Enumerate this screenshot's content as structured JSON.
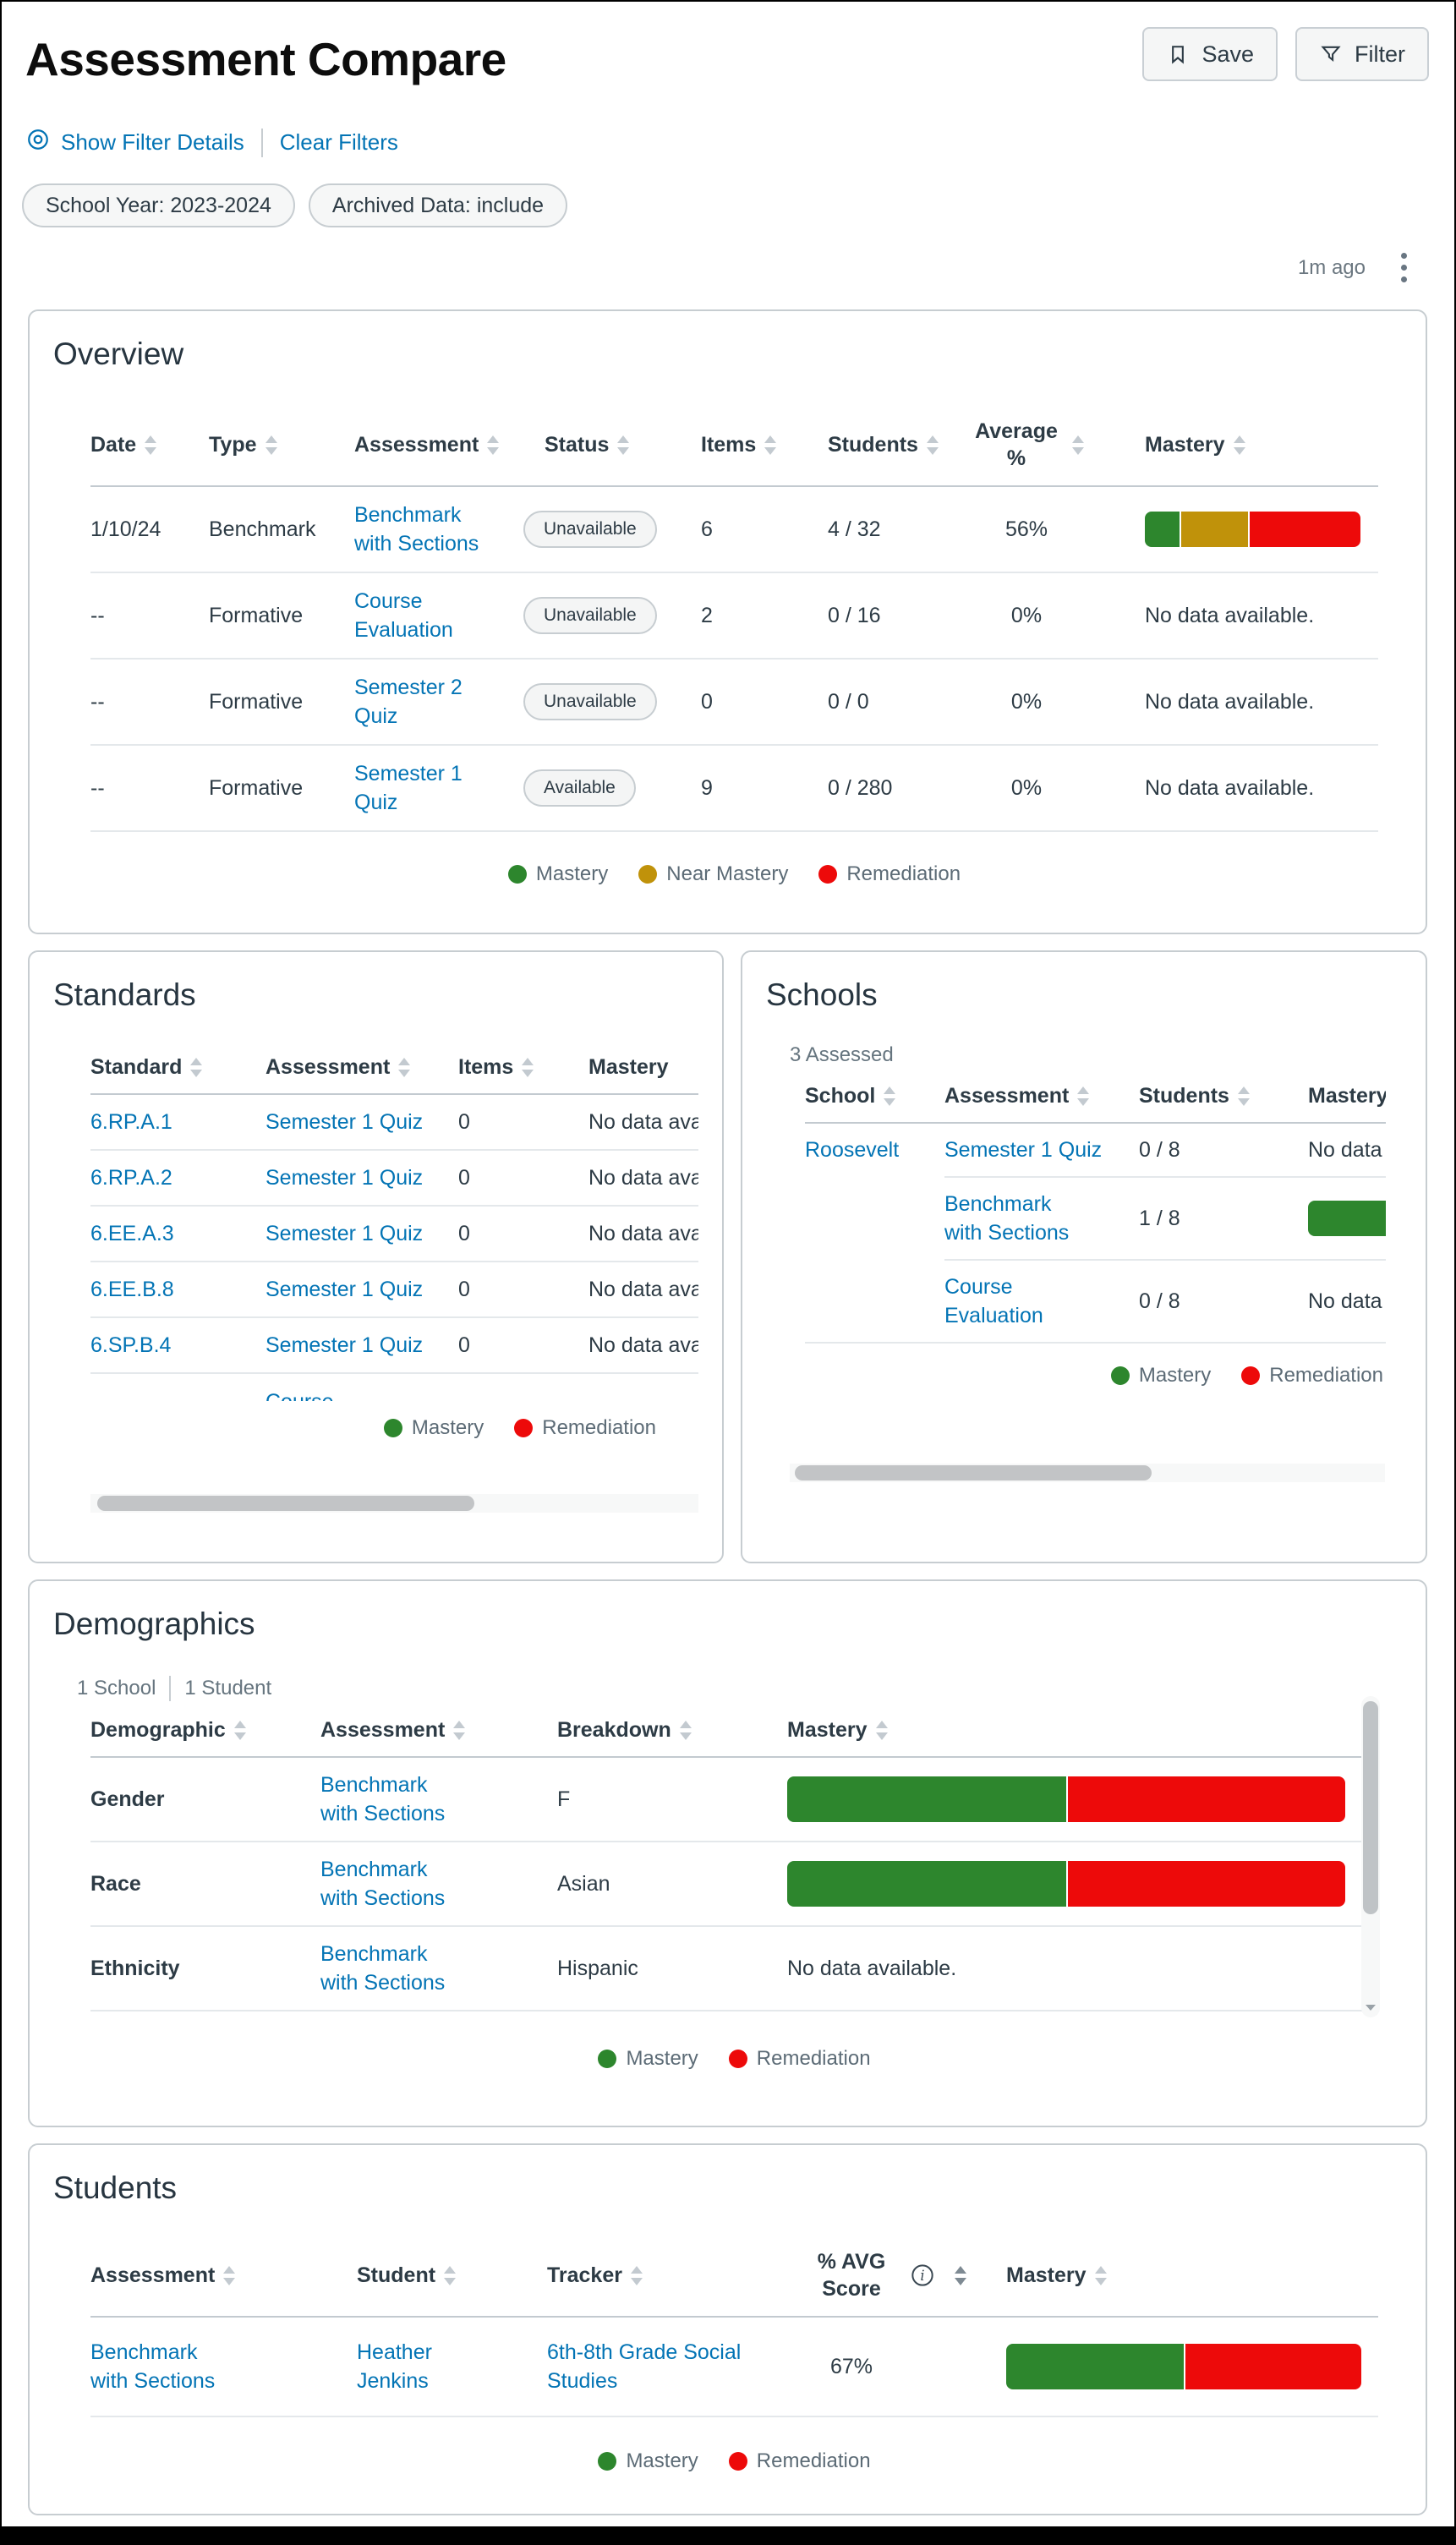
{
  "colors": {
    "mastery": "#2D862D",
    "near_mastery": "#C0920A",
    "remediation": "#ED0A0A"
  },
  "header": {
    "title": "Assessment Compare",
    "save_label": "Save",
    "filter_label": "Filter",
    "show_filter_details": "Show Filter Details",
    "clear_filters": "Clear Filters",
    "pills": [
      "School Year: 2023-2024",
      "Archived Data: include"
    ],
    "updated": "1m ago"
  },
  "overview": {
    "heading": "Overview",
    "columns": {
      "date": "Date",
      "type": "Type",
      "assessment": "Assessment",
      "status": "Status",
      "items": "Items",
      "students": "Students",
      "avg": "Average %",
      "mastery": "Mastery"
    },
    "rows": [
      {
        "date": "1/10/24",
        "type": "Benchmark",
        "assessment": "Benchmark with Sections",
        "status": "Unavailable",
        "items": "6",
        "students": "4 / 32",
        "avg": "56%",
        "mastery_bar": {
          "mastery": 16,
          "near_mastery": 32,
          "remediation": 52
        }
      },
      {
        "date": "--",
        "type": "Formative",
        "assessment": "Course Evaluation",
        "status": "Unavailable",
        "items": "2",
        "students": "0 / 16",
        "avg": "0%",
        "mastery_text": "No data available."
      },
      {
        "date": "--",
        "type": "Formative",
        "assessment": "Semester 2 Quiz",
        "status": "Unavailable",
        "items": "0",
        "students": "0 / 0",
        "avg": "0%",
        "mastery_text": "No data available."
      },
      {
        "date": "--",
        "type": "Formative",
        "assessment": "Semester 1 Quiz",
        "status": "Available",
        "items": "9",
        "students": "0 / 280",
        "avg": "0%",
        "mastery_text": "No data available."
      }
    ],
    "legend": [
      {
        "label": "Mastery"
      },
      {
        "label": "Near Mastery"
      },
      {
        "label": "Remediation"
      }
    ]
  },
  "standards": {
    "heading": "Standards",
    "columns": {
      "standard": "Standard",
      "assessment": "Assessment",
      "items": "Items",
      "mastery": "Mastery"
    },
    "rows": [
      {
        "standard": "6.RP.A.1",
        "assessment": "Semester 1 Quiz",
        "items": "0",
        "mastery_text": "No data available."
      },
      {
        "standard": "6.RP.A.2",
        "assessment": "Semester 1 Quiz",
        "items": "0",
        "mastery_text": "No data available."
      },
      {
        "standard": "6.EE.A.3",
        "assessment": "Semester 1 Quiz",
        "items": "0",
        "mastery_text": "No data available."
      },
      {
        "standard": "6.EE.B.8",
        "assessment": "Semester 1 Quiz",
        "items": "0",
        "mastery_text": "No data available."
      },
      {
        "standard": "6.SP.B.4",
        "assessment": "Semester 1 Quiz",
        "items": "0",
        "mastery_text": "No data available."
      }
    ],
    "partial_row_text": "Course",
    "legend": [
      {
        "label": "Mastery"
      },
      {
        "label": "Remediation"
      }
    ]
  },
  "schools": {
    "heading": "Schools",
    "assessed": "3 Assessed",
    "columns": {
      "school": "School",
      "assessment": "Assessment",
      "students": "Students",
      "mastery": "Mastery"
    },
    "rows": [
      {
        "school": "Roosevelt",
        "assessment": "Semester 1 Quiz",
        "students": "0 / 8",
        "mastery_text": "No data available."
      },
      {
        "school": "",
        "assessment": "Benchmark with Sections",
        "students": "1 / 8",
        "mastery_bar": {
          "mastery": 100
        }
      },
      {
        "school": "",
        "assessment": "Course Evaluation",
        "students": "0 / 8",
        "mastery_text": "No data available."
      }
    ],
    "legend": [
      {
        "label": "Mastery"
      },
      {
        "label": "Remediation"
      }
    ]
  },
  "demographics": {
    "heading": "Demographics",
    "school_count": "1 School",
    "student_count": "1 Student",
    "columns": {
      "demographic": "Demographic",
      "assessment": "Assessment",
      "breakdown": "Breakdown",
      "mastery": "Mastery"
    },
    "rows": [
      {
        "demographic": "Gender",
        "assessment": "Benchmark with Sections",
        "breakdown": "F",
        "mastery_bar": {
          "mastery": 50,
          "remediation": 50
        }
      },
      {
        "demographic": "Race",
        "assessment": "Benchmark with Sections",
        "breakdown": "Asian",
        "mastery_bar": {
          "mastery": 50,
          "remediation": 50
        }
      },
      {
        "demographic": "Ethnicity",
        "assessment": "Benchmark with Sections",
        "breakdown": "Hispanic",
        "mastery_text": "No data available."
      }
    ],
    "legend": [
      {
        "label": "Mastery"
      },
      {
        "label": "Remediation"
      }
    ]
  },
  "students": {
    "heading": "Students",
    "columns": {
      "assessment": "Assessment",
      "student": "Student",
      "tracker": "Tracker",
      "avg": "% AVG Score",
      "mastery": "Mastery"
    },
    "rows": [
      {
        "assessment": "Benchmark with Sections",
        "student": "Heather Jenkins",
        "tracker": "6th-8th Grade Social Studies",
        "avg": "67%",
        "mastery_bar": {
          "mastery": 50,
          "remediation": 50
        }
      }
    ],
    "legend": [
      {
        "label": "Mastery"
      },
      {
        "label": "Remediation"
      }
    ]
  }
}
